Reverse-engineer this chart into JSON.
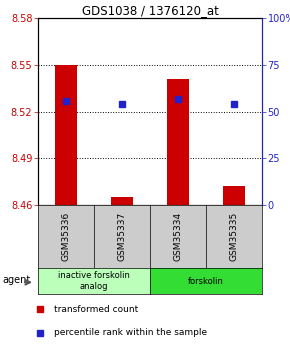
{
  "title": "GDS1038 / 1376120_at",
  "samples": [
    "GSM35336",
    "GSM35337",
    "GSM35334",
    "GSM35335"
  ],
  "bar_values": [
    8.55,
    8.465,
    8.541,
    8.472
  ],
  "bar_base": 8.46,
  "blue_values": [
    8.527,
    8.525,
    8.528,
    8.525
  ],
  "ylim": [
    8.46,
    8.58
  ],
  "y_ticks": [
    8.46,
    8.49,
    8.52,
    8.55,
    8.58
  ],
  "y2_ticks": [
    0,
    25,
    50,
    75,
    100
  ],
  "dotted_lines": [
    8.49,
    8.52,
    8.55
  ],
  "groups": [
    {
      "label": "inactive forskolin\nanalog",
      "color": "#bbffbb",
      "span": [
        0,
        2
      ]
    },
    {
      "label": "forskolin",
      "color": "#33dd33",
      "span": [
        2,
        4
      ]
    }
  ],
  "bar_color": "#cc0000",
  "blue_color": "#2222cc",
  "agent_label": "agent",
  "legend_items": [
    {
      "color": "#cc0000",
      "label": "transformed count"
    },
    {
      "color": "#2222cc",
      "label": "percentile rank within the sample"
    }
  ],
  "sample_box_color": "#cccccc",
  "title_fontsize": 8.5,
  "tick_fontsize": 7,
  "legend_fontsize": 6.5
}
